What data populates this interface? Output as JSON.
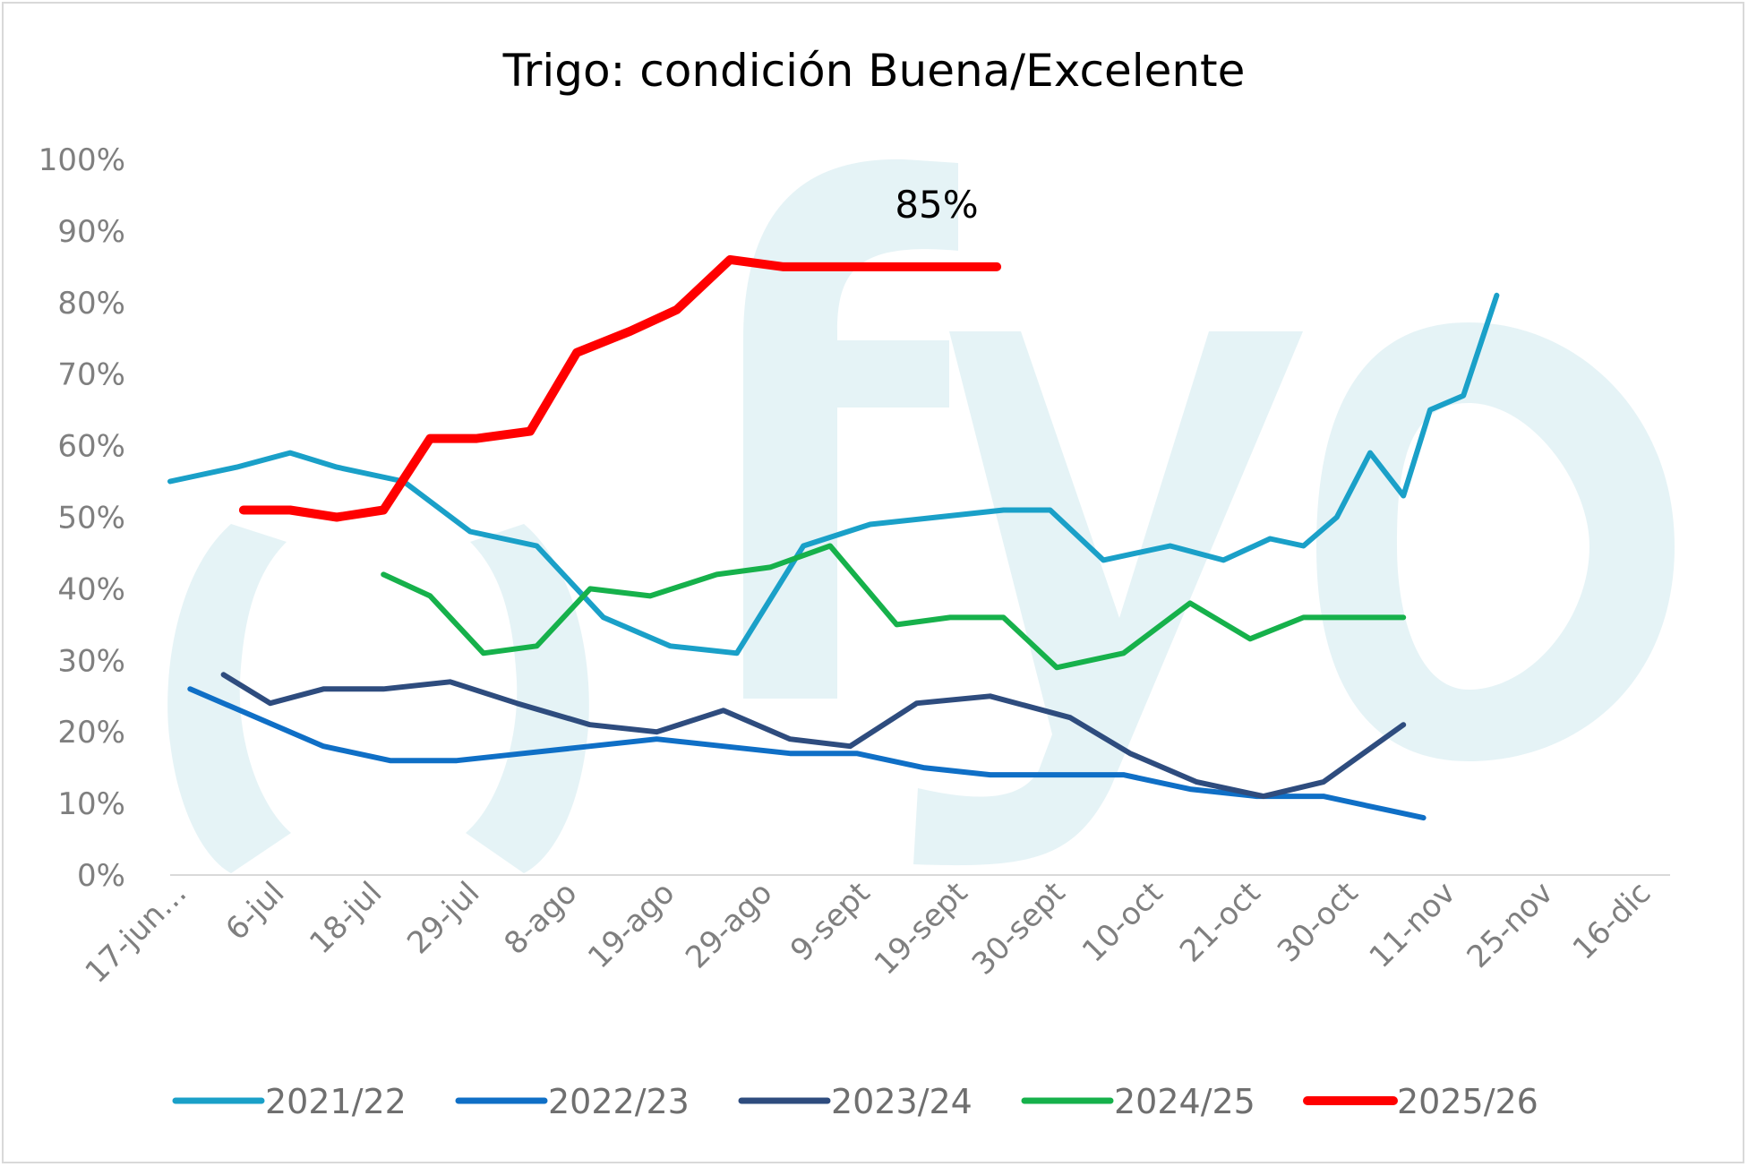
{
  "chart_data": {
    "type": "line",
    "title": "Trigo: condición Buena/Excelente",
    "xlabel": "",
    "ylabel": "",
    "ylim": [
      0,
      100
    ],
    "y_ticks": [
      "0%",
      "10%",
      "20%",
      "30%",
      "40%",
      "50%",
      "60%",
      "70%",
      "80%",
      "90%",
      "100%"
    ],
    "x_tick_labels": [
      "17-jun…",
      "6-jul",
      "18-jul",
      "29-jul",
      "8-ago",
      "19-ago",
      "29-ago",
      "9-sept",
      "19-sept",
      "30-sept",
      "10-oct",
      "21-oct",
      "30-oct",
      "11-nov",
      "25-nov",
      "16-dic"
    ],
    "x_range": [
      0,
      22.5
    ],
    "legend_position": "bottom",
    "annotation": {
      "text": "85%",
      "series": "2025/26",
      "x": 11.7,
      "y": 85
    },
    "series": [
      {
        "name": "2021/22",
        "color": "#1aa0c8",
        "x": [
          0,
          1,
          1.8,
          2.5,
          3.5,
          4.5,
          5.5,
          6.5,
          7.5,
          8.5,
          9.5,
          10.5,
          11.5,
          12.5,
          13.2,
          14,
          15,
          15.8,
          16.5,
          17,
          17.5,
          18,
          18.5,
          18.9,
          19.4,
          19.9
        ],
        "values": [
          55,
          57,
          59,
          57,
          55,
          48,
          46,
          36,
          32,
          31,
          46,
          49,
          50,
          51,
          51,
          44,
          46,
          44,
          47,
          46,
          50,
          59,
          53,
          65,
          67,
          81
        ]
      },
      {
        "name": "2022/23",
        "color": "#0f6fc6",
        "x": [
          0.3,
          1.3,
          2.3,
          3.3,
          4.3,
          5.3,
          6.3,
          7.3,
          8.3,
          9.3,
          10.3,
          11.3,
          12.3,
          13.3,
          14.3,
          15.3,
          16.3,
          17.3,
          18.3,
          18.8
        ],
        "values": [
          26,
          22,
          18,
          16,
          16,
          17,
          18,
          19,
          18,
          17,
          17,
          15,
          14,
          14,
          14,
          12,
          11,
          11,
          9,
          8
        ]
      },
      {
        "name": "2023/24",
        "color": "#2e4c7e",
        "x": [
          0.8,
          1.5,
          2.3,
          3.2,
          4.2,
          5.2,
          6.3,
          7.3,
          8.3,
          9.3,
          10.2,
          11.2,
          12.3,
          13.5,
          14.4,
          15.4,
          16.4,
          17.3,
          17.6,
          18.5
        ],
        "values": [
          28,
          24,
          26,
          26,
          27,
          24,
          21,
          20,
          23,
          19,
          18,
          24,
          25,
          22,
          17,
          13,
          11,
          13,
          15,
          21
        ]
      },
      {
        "name": "2024/25",
        "color": "#16b14b",
        "x": [
          3.2,
          3.9,
          4.7,
          5.5,
          6.3,
          7.2,
          8.2,
          9.0,
          9.9,
          10.9,
          11.7,
          12.5,
          13.3,
          14.3,
          15.3,
          16.2,
          17.0,
          17.9,
          18.5
        ],
        "values": [
          42,
          39,
          31,
          32,
          40,
          39,
          42,
          43,
          46,
          35,
          36,
          36,
          29,
          31,
          38,
          33,
          36,
          36,
          36
        ]
      },
      {
        "name": "2025/26",
        "color": "#ff0000",
        "x": [
          1.1,
          1.8,
          2.5,
          3.2,
          3.9,
          4.6,
          5.4,
          6.1,
          6.9,
          7.6,
          8.4,
          9.2,
          10.0,
          10.8,
          11.5,
          12.4
        ],
        "values": [
          51,
          51,
          50,
          51,
          61,
          61,
          62,
          73,
          76,
          79,
          86,
          85,
          85,
          85,
          85,
          85
        ]
      }
    ]
  },
  "watermark": "fyo"
}
